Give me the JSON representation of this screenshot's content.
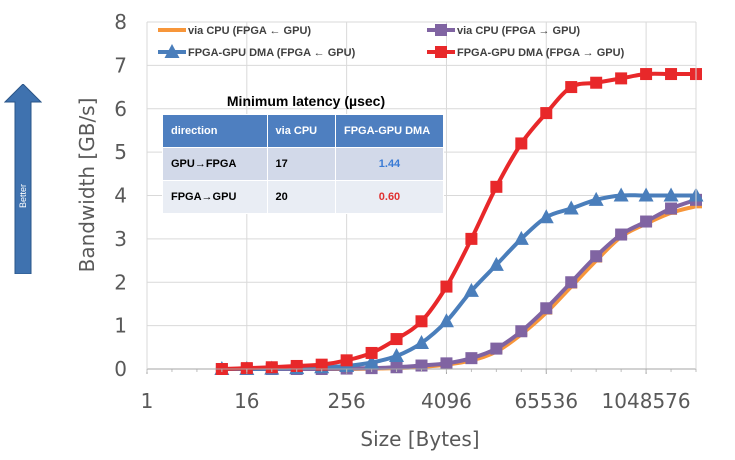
{
  "better": {
    "label": "Better",
    "color": "#3f72af"
  },
  "latency_table": {
    "title": "Minimum latency (µsec)",
    "headers": [
      "direction",
      "via CPU",
      "FPGA-GPU DMA"
    ],
    "rows": [
      {
        "direction": "GPU→FPGA",
        "via_cpu": "17",
        "dma": "1.44",
        "dma_color": "#3a7bd5"
      },
      {
        "direction": "FPGA→GPU",
        "via_cpu": "20",
        "dma": "0.60",
        "dma_color": "#e03030"
      }
    ]
  },
  "chart_data": {
    "type": "line",
    "xlabel": "Size [Bytes]",
    "ylabel": "Bandwidth [GB/s]",
    "x_scale": "log2",
    "xlim_exp": [
      0,
      22
    ],
    "x_ticks": [
      "1",
      "16",
      "256",
      "4096",
      "65536",
      "1048576"
    ],
    "ylim": [
      0,
      8
    ],
    "y_ticks": [
      "0",
      "1",
      "2",
      "3",
      "4",
      "5",
      "6",
      "7",
      "8"
    ],
    "grid": "horizontal-and-vertical",
    "legend_position": "top",
    "x": [
      8,
      16,
      32,
      64,
      128,
      256,
      512,
      1024,
      2048,
      4096,
      8192,
      16384,
      32768,
      65536,
      131072,
      262144,
      524288,
      1048576,
      2097152,
      4194304
    ],
    "series": [
      {
        "name": "via CPU (FPGA ← GPU)",
        "color": "#f7963a",
        "marker": "line",
        "values": [
          0.0,
          0.0,
          0.0,
          0.0,
          0.0,
          0.0,
          0.01,
          0.02,
          0.05,
          0.1,
          0.2,
          0.4,
          0.8,
          1.3,
          1.9,
          2.5,
          3.05,
          3.35,
          3.6,
          3.75
        ]
      },
      {
        "name": "via CPU (FPGA → GPU)",
        "color": "#8064a2",
        "marker": "square",
        "values": [
          0.0,
          0.0,
          0.0,
          0.0,
          0.0,
          0.01,
          0.02,
          0.04,
          0.08,
          0.13,
          0.25,
          0.47,
          0.87,
          1.4,
          2.0,
          2.6,
          3.1,
          3.4,
          3.7,
          3.9
        ]
      },
      {
        "name": "FPGA-GPU DMA (FPGA ← GPU)",
        "color": "#4a7ebb",
        "marker": "triangle",
        "values": [
          0.0,
          0.0,
          0.01,
          0.02,
          0.04,
          0.07,
          0.15,
          0.3,
          0.6,
          1.1,
          1.8,
          2.4,
          3.0,
          3.5,
          3.7,
          3.9,
          4.0,
          4.0,
          4.0,
          4.0
        ]
      },
      {
        "name": "FPGA-GPU DMA (FPGA → GPU)",
        "color": "#e8282a",
        "marker": "square",
        "values": [
          0.0,
          0.02,
          0.04,
          0.07,
          0.1,
          0.2,
          0.37,
          0.69,
          1.1,
          1.9,
          3.0,
          4.2,
          5.2,
          5.9,
          6.5,
          6.6,
          6.7,
          6.8,
          6.8,
          6.8
        ]
      }
    ]
  }
}
